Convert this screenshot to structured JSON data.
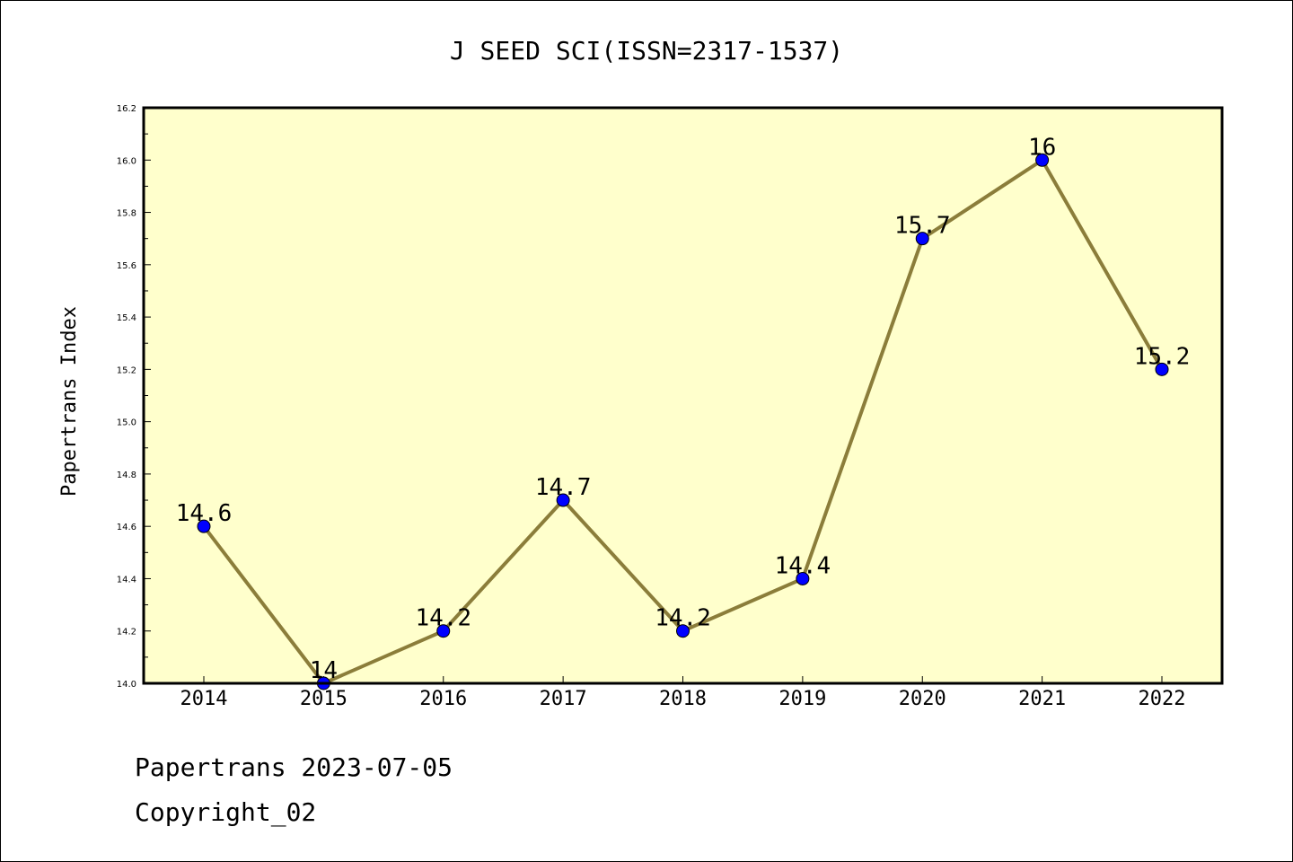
{
  "chart_data": {
    "type": "line",
    "title": "J SEED SCI(ISSN=2317-1537)",
    "xlabel": "",
    "ylabel": "Papertrans Index",
    "x": [
      "2014",
      "2015",
      "2016",
      "2017",
      "2018",
      "2019",
      "2020",
      "2021",
      "2022"
    ],
    "series": [
      {
        "values": [
          14.6,
          14.0,
          14.2,
          14.7,
          14.2,
          14.4,
          15.7,
          16.0,
          15.2
        ]
      }
    ],
    "data_labels": [
      "14.6",
      "14",
      "14.2",
      "14.7",
      "14.2",
      "14.4",
      "15.7",
      "16",
      "15.2"
    ],
    "ylim": [
      14.0,
      16.2
    ],
    "yticks": [
      "14.0",
      "14.2",
      "14.4",
      "14.6",
      "14.8",
      "15.0",
      "15.2",
      "15.4",
      "15.6",
      "15.8",
      "16.0",
      "16.2"
    ],
    "grid": false,
    "colors": {
      "plot_bg": "#ffffcc",
      "line": "#8b7d3a",
      "marker": "#0000ff"
    }
  },
  "footer": {
    "date_line": "Papertrans 2023-07-05",
    "copyright": "Copyright_02"
  }
}
